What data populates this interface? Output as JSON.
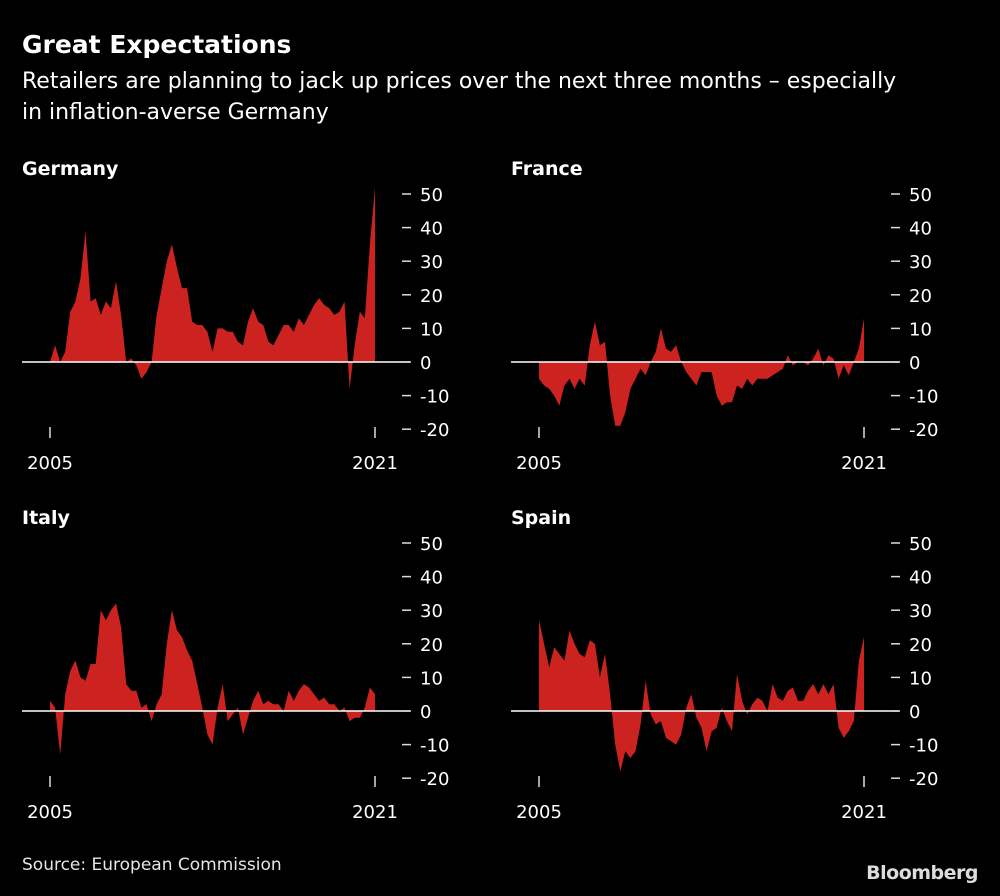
{
  "header": {
    "title": "Great Expectations",
    "subtitle": "Retailers are planning to jack up prices over the next three months – especially in inflation-averse Germany"
  },
  "footer": {
    "source": "Source: European Commission",
    "logo": "Bloomberg"
  },
  "colors": {
    "area": "#cc2220",
    "background": "#000000",
    "zero_line": "#ffffff"
  },
  "chart_data": [
    {
      "type": "area",
      "title": "Germany",
      "x_tick_labels": [
        "2005",
        "2021"
      ],
      "x_ticks": [
        2005,
        2021
      ],
      "xlim": [
        2005,
        2021.25
      ],
      "y_ticks": [
        50,
        40,
        30,
        20,
        10,
        0,
        -10,
        -20
      ],
      "y_tick_labels": [
        "50",
        "40",
        "30",
        "20",
        "10",
        "0",
        "-10",
        "-20"
      ],
      "ylim": [
        -20,
        50
      ],
      "x_start": 2005,
      "x_step_years": 0.25,
      "values": [
        0,
        5,
        0,
        3,
        15,
        18,
        25,
        39,
        18,
        19,
        14,
        18,
        16,
        24,
        14,
        0,
        1,
        -1,
        -5,
        -3,
        0,
        14,
        22,
        30,
        35,
        28,
        22,
        22,
        12,
        11,
        11,
        9,
        3,
        10,
        10,
        9,
        9,
        6,
        5,
        12,
        16,
        12,
        11,
        6,
        5,
        8,
        11,
        11,
        9,
        13,
        11,
        14,
        17,
        19,
        17,
        16,
        14,
        15,
        18,
        -8,
        5,
        15,
        13,
        35,
        52
      ]
    },
    {
      "type": "area",
      "title": "France",
      "x_tick_labels": [
        "2005",
        "2021"
      ],
      "x_ticks": [
        2005,
        2021
      ],
      "xlim": [
        2005,
        2021.25
      ],
      "y_ticks": [
        50,
        40,
        30,
        20,
        10,
        0,
        -10,
        -20
      ],
      "y_tick_labels": [
        "50",
        "40",
        "30",
        "20",
        "10",
        "0",
        "-10",
        "-20"
      ],
      "ylim": [
        -20,
        50
      ],
      "x_start": 2005,
      "x_step_years": 0.25,
      "values": [
        -5,
        -7,
        -8,
        -10,
        -13,
        -7,
        -5,
        -8,
        -5,
        -7,
        5,
        12,
        5,
        6,
        -10,
        -19,
        -19,
        -15,
        -8,
        -5,
        -2,
        -4,
        0,
        3,
        10,
        4,
        3,
        5,
        0,
        -3,
        -5,
        -7,
        -3,
        -3,
        -3,
        -10,
        -13,
        -12,
        -12,
        -7,
        -8,
        -5,
        -7,
        -5,
        -5,
        -5,
        -4,
        -3,
        -2,
        2,
        -1,
        0,
        0,
        -1,
        1,
        4,
        -1,
        2,
        1,
        -5,
        -1,
        -4,
        0,
        4,
        13
      ]
    },
    {
      "type": "area",
      "title": "Italy",
      "x_tick_labels": [
        "2005",
        "2021"
      ],
      "x_ticks": [
        2005,
        2021
      ],
      "xlim": [
        2005,
        2021.25
      ],
      "y_ticks": [
        50,
        40,
        30,
        20,
        10,
        0,
        -10,
        -20
      ],
      "y_tick_labels": [
        "50",
        "40",
        "30",
        "20",
        "10",
        "0",
        "-10",
        "-20"
      ],
      "ylim": [
        -20,
        50
      ],
      "x_start": 2005,
      "x_step_years": 0.25,
      "values": [
        3,
        1,
        -13,
        5,
        12,
        15,
        10,
        9,
        14,
        14,
        30,
        27,
        30,
        32,
        25,
        8,
        6,
        6,
        1,
        2,
        -3,
        2,
        5,
        20,
        30,
        24,
        22,
        18,
        15,
        8,
        1,
        -7,
        -10,
        1,
        8,
        -3,
        -1,
        1,
        -7,
        -2,
        3,
        6,
        2,
        3,
        2,
        2,
        0,
        6,
        3,
        6,
        8,
        7,
        5,
        3,
        4,
        2,
        2,
        0,
        1,
        -3,
        -2,
        -2,
        1,
        7,
        5
      ]
    },
    {
      "type": "area",
      "title": "Spain",
      "x_tick_labels": [
        "2005",
        "2021"
      ],
      "x_ticks": [
        2005,
        2021
      ],
      "xlim": [
        2005,
        2021.25
      ],
      "y_ticks": [
        50,
        40,
        30,
        20,
        10,
        0,
        -10,
        -20
      ],
      "y_tick_labels": [
        "50",
        "40",
        "30",
        "20",
        "10",
        "0",
        "-10",
        "-20"
      ],
      "ylim": [
        -20,
        50
      ],
      "x_start": 2005,
      "x_step_years": 0.25,
      "values": [
        27,
        20,
        13,
        19,
        17,
        15,
        24,
        20,
        17,
        16,
        21,
        20,
        10,
        17,
        5,
        -10,
        -18,
        -12,
        -14,
        -12,
        -4,
        9,
        -1,
        -4,
        -3,
        -8,
        -9,
        -10,
        -7,
        1,
        5,
        -2,
        -5,
        -12,
        -6,
        -5,
        1,
        -3,
        -6,
        11,
        3,
        -1,
        2,
        4,
        3,
        0,
        8,
        4,
        3,
        6,
        7,
        3,
        3,
        6,
        8,
        5,
        8,
        5,
        8,
        -5,
        -8,
        -6,
        -3,
        15,
        22
      ]
    }
  ]
}
